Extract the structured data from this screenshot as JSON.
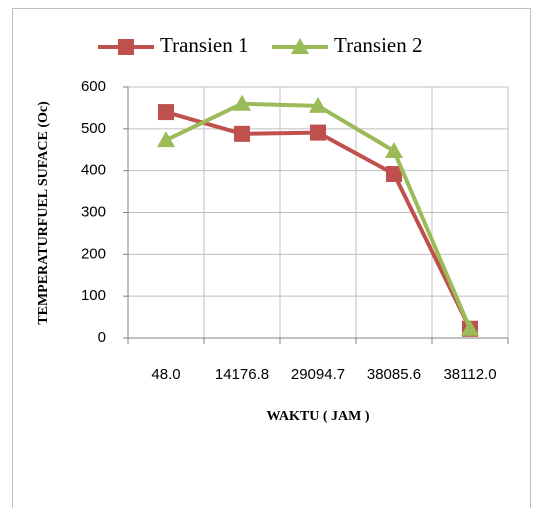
{
  "chart_data": {
    "type": "line",
    "x_label": "WAKTU ( JAM )",
    "y_label": "TEMPERATURFUEL SUFACE (Oc)",
    "categories": [
      "48.0",
      "14176.8",
      "29094.7",
      "38085.6",
      "38112.0"
    ],
    "series": [
      {
        "name": "Transien 1",
        "color": "#c0504d",
        "marker": "square",
        "values": [
          540,
          488,
          491,
          392,
          22
        ]
      },
      {
        "name": "Transien 2",
        "color": "#9bbb59",
        "marker": "triangle",
        "values": [
          473,
          560,
          555,
          447,
          22
        ]
      }
    ],
    "ylim": [
      0,
      600
    ],
    "yticks": [
      0,
      100,
      200,
      300,
      400,
      500,
      600
    ],
    "grid": true,
    "legend": "top"
  }
}
